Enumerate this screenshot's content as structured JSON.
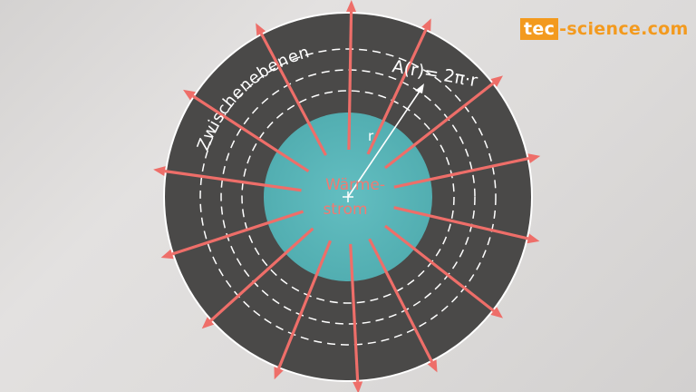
{
  "logo": {
    "part1": "tec",
    "part2": "-science.com"
  },
  "diagram": {
    "interlayer_label": "Zwischenebenen",
    "area_formula": "A(r)= 2π·r",
    "radius_label": "r",
    "flow_label_line1": "Wärme-",
    "flow_label_line2": "strom",
    "arrow_count": 14
  },
  "colors": {
    "outer_ring": "#4a4948",
    "inner_core": "#5ab6b9",
    "arrows": "#ee6e69",
    "background": "#dedcdb",
    "accent_logo": "#f39a1e"
  }
}
